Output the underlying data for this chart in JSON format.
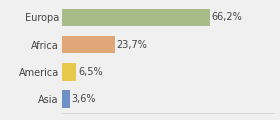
{
  "categories": [
    "Europa",
    "Africa",
    "America",
    "Asia"
  ],
  "values": [
    66.2,
    23.7,
    6.5,
    3.6
  ],
  "labels": [
    "66,2%",
    "23,7%",
    "6,5%",
    "3,6%"
  ],
  "bar_colors": [
    "#a8bc8a",
    "#e0a878",
    "#e8c84a",
    "#7090c8"
  ],
  "background_color": "#f0f0f0",
  "label_fontsize": 7.0,
  "category_fontsize": 7.0,
  "bar_height": 0.65,
  "xlim": [
    0,
    95
  ]
}
